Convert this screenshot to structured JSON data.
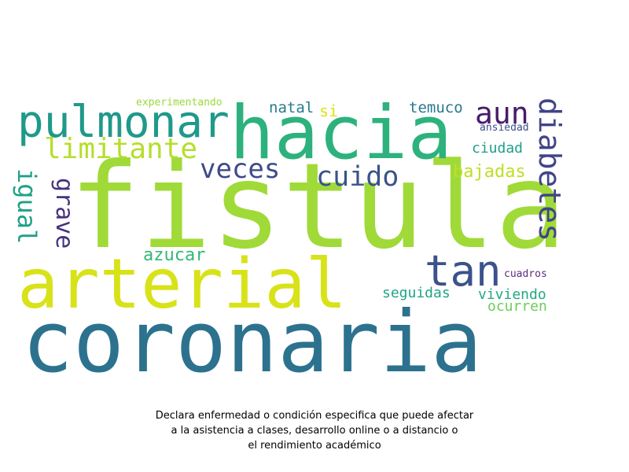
{
  "wordcloud": {
    "words": [
      {
        "text": "fistula",
        "color": "#a0da39"
      },
      {
        "text": "coronaria",
        "color": "#2c728e"
      },
      {
        "text": "hacia",
        "color": "#2db27d"
      },
      {
        "text": "arterial",
        "color": "#d8e219"
      },
      {
        "text": "pulmonar",
        "color": "#1f998a"
      },
      {
        "text": "tan",
        "color": "#3b528b"
      },
      {
        "text": "diabetes",
        "color": "#414487"
      },
      {
        "text": "limitante",
        "color": "#b5de2b"
      },
      {
        "text": "veces",
        "color": "#3e4a89"
      },
      {
        "text": "cuido",
        "color": "#3b528b"
      },
      {
        "text": "aun",
        "color": "#481a6c"
      },
      {
        "text": "igual",
        "color": "#1fa187"
      },
      {
        "text": "grave",
        "color": "#46337e"
      },
      {
        "text": "bajadas",
        "color": "#bddf26"
      },
      {
        "text": "azucar",
        "color": "#35b779"
      },
      {
        "text": "ciudad",
        "color": "#1f9e89"
      },
      {
        "text": "temuco",
        "color": "#2a788e"
      },
      {
        "text": "natal",
        "color": "#287c8e"
      },
      {
        "text": "si",
        "color": "#dde318"
      },
      {
        "text": "seguidas",
        "color": "#20a486"
      },
      {
        "text": "viviendo",
        "color": "#23a983"
      },
      {
        "text": "ocurren",
        "color": "#6ccd5a"
      },
      {
        "text": "experimentando",
        "color": "#9bd93c"
      },
      {
        "text": "ansiedad",
        "color": "#3d4d8a"
      },
      {
        "text": "cuadros",
        "color": "#5b2d7e"
      }
    ]
  },
  "caption": {
    "line1": "Declara enfermedad o condición especifica que puede afectar",
    "line2": "a la asistencia a clases, desarrollo online o a distancio o",
    "line3": "el rendimiento académico"
  }
}
